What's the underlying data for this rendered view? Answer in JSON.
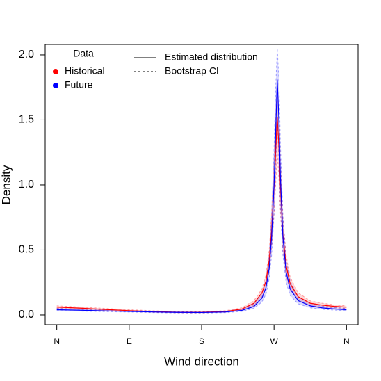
{
  "chart_data": {
    "type": "line",
    "x_label": "Wind direction",
    "y_label": "Density",
    "legend_title": "Data",
    "linetype_legend": [
      "Estimated distribution",
      "Bootstrap CI"
    ],
    "xlim": [
      -14.4,
      374.4
    ],
    "ylim": [
      -0.075,
      2.08
    ],
    "xticks": [
      {
        "value": 0,
        "label": "N"
      },
      {
        "value": 90,
        "label": "E"
      },
      {
        "value": 180,
        "label": "S"
      },
      {
        "value": 270,
        "label": "W"
      },
      {
        "value": 360,
        "label": "N"
      }
    ],
    "yticks": [
      {
        "value": 0,
        "label": "0.0"
      },
      {
        "value": 0.5,
        "label": "0.5"
      },
      {
        "value": 1,
        "label": "1.0"
      },
      {
        "value": 1.5,
        "label": "1.5"
      },
      {
        "value": 2,
        "label": "2.0"
      }
    ],
    "x": [
      0,
      30,
      60,
      90,
      120,
      150,
      180,
      210,
      230,
      245,
      255,
      260,
      264,
      267,
      270,
      272,
      274,
      276,
      278,
      281,
      285,
      290,
      300,
      315,
      330,
      345,
      360
    ],
    "series": [
      {
        "name": "Historical",
        "color": "#ff0000",
        "values": [
          0.06,
          0.052,
          0.042,
          0.033,
          0.026,
          0.021,
          0.02,
          0.027,
          0.045,
          0.09,
          0.17,
          0.26,
          0.42,
          0.65,
          0.98,
          1.25,
          1.52,
          1.3,
          0.98,
          0.62,
          0.38,
          0.24,
          0.14,
          0.09,
          0.075,
          0.066,
          0.06
        ],
        "lower": [
          0.05,
          0.043,
          0.034,
          0.026,
          0.02,
          0.016,
          0.015,
          0.021,
          0.036,
          0.073,
          0.14,
          0.21,
          0.34,
          0.52,
          0.78,
          1.0,
          1.24,
          1.05,
          0.78,
          0.5,
          0.3,
          0.19,
          0.11,
          0.072,
          0.06,
          0.054,
          0.05
        ],
        "upper": [
          0.07,
          0.061,
          0.05,
          0.04,
          0.032,
          0.026,
          0.025,
          0.033,
          0.055,
          0.11,
          0.2,
          0.31,
          0.5,
          0.79,
          1.2,
          1.52,
          1.8,
          1.56,
          1.18,
          0.75,
          0.46,
          0.29,
          0.17,
          0.108,
          0.09,
          0.078,
          0.07
        ]
      },
      {
        "name": "Future",
        "color": "#0000ff",
        "values": [
          0.04,
          0.036,
          0.031,
          0.027,
          0.023,
          0.02,
          0.019,
          0.023,
          0.035,
          0.065,
          0.13,
          0.21,
          0.36,
          0.6,
          1.0,
          1.4,
          1.81,
          1.5,
          1.05,
          0.6,
          0.33,
          0.2,
          0.11,
          0.07,
          0.054,
          0.046,
          0.04
        ],
        "lower": [
          0.032,
          0.029,
          0.025,
          0.022,
          0.018,
          0.016,
          0.015,
          0.018,
          0.027,
          0.05,
          0.1,
          0.16,
          0.28,
          0.46,
          0.78,
          1.1,
          1.5,
          1.2,
          0.82,
          0.46,
          0.25,
          0.15,
          0.085,
          0.055,
          0.043,
          0.037,
          0.032
        ],
        "upper": [
          0.05,
          0.045,
          0.039,
          0.034,
          0.029,
          0.025,
          0.024,
          0.029,
          0.045,
          0.085,
          0.17,
          0.27,
          0.46,
          0.77,
          1.27,
          1.74,
          2.05,
          1.82,
          1.3,
          0.76,
          0.42,
          0.26,
          0.14,
          0.09,
          0.068,
          0.058,
          0.05
        ]
      }
    ]
  }
}
